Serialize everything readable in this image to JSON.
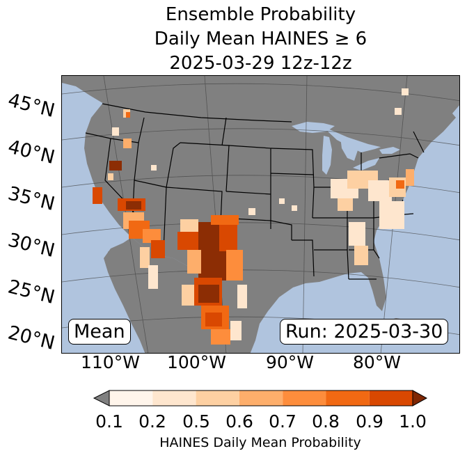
{
  "title": {
    "line1": "Ensemble Probability",
    "line2": "Daily Mean HAINES ≥ 6",
    "line3": "2025-03-29 12z-12z"
  },
  "map": {
    "ocean_color": "#b0c4de",
    "land_color": "#808080",
    "border_color": "#000000",
    "lat_labels": [
      "45°N",
      "40°N",
      "35°N",
      "30°N",
      "25°N",
      "20°N"
    ],
    "lon_labels": [
      "110°W",
      "100°W",
      "90°W",
      "80°W"
    ],
    "mean_label": "Mean",
    "run_label": "Run: 2025-03-30"
  },
  "colorbar": {
    "ticks": [
      "0.1",
      "0.2",
      "0.5",
      "0.6",
      "0.7",
      "0.8",
      "0.9",
      "1.0"
    ],
    "colors": [
      "#fff5eb",
      "#fee6ce",
      "#fdd0a2",
      "#fdae6b",
      "#fd8d3c",
      "#f16913",
      "#d94801",
      "#8c2d04"
    ],
    "under_color": "#808080",
    "over_color": "#7f2704",
    "label": "HAINES Daily Mean Probability"
  }
}
